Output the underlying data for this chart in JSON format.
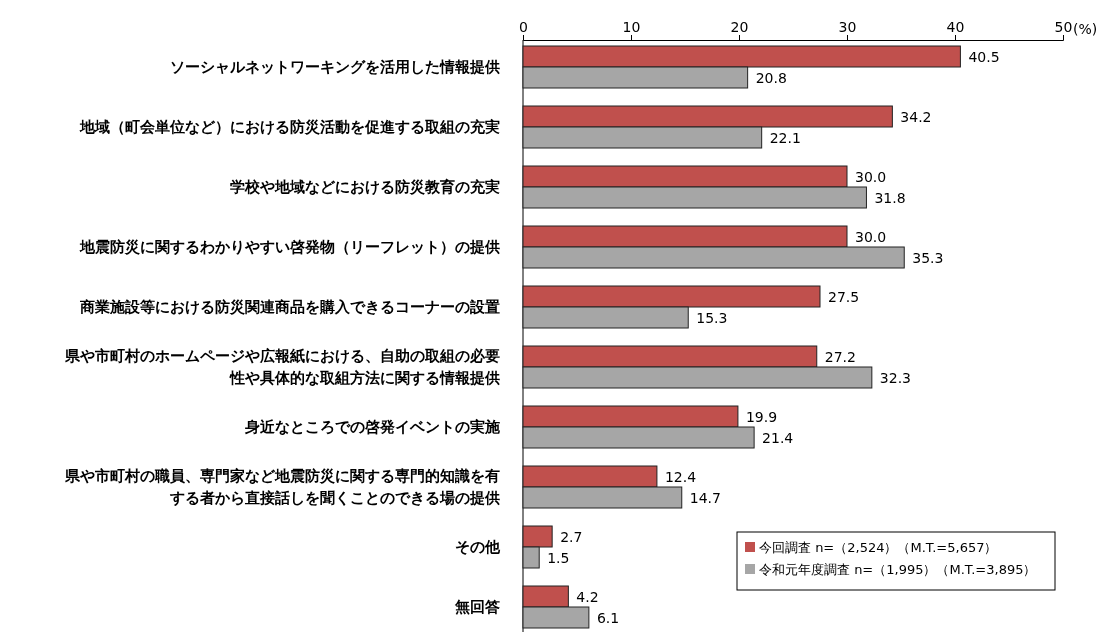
{
  "chart_data": {
    "type": "bar",
    "orientation": "horizontal",
    "xlabel": "(%)",
    "categories": [
      "ソーシャルネットワーキングを活用した情報提供",
      "地域（町会単位など）における防災活動を促進する取組の充実",
      "学校や地域などにおける防災教育の充実",
      "地震防災に関するわかりやすい啓発物（リーフレット）の提供",
      "商業施設等における防災関連商品を購入できるコーナーの設置",
      "県や市町村のホームページや広報紙における、自助の取組の必要性や具体的な取組方法に関する情報提供",
      "身近なところでの啓発イベントの実施",
      "県や市町村の職員、専門家など地震防災に関する専門的知識を有する者から直接話しを聞くことのできる場の提供",
      "その他",
      "無回答"
    ],
    "series": [
      {
        "name": "今回調査 n=（2,524）（M.T.=5,657）",
        "color": "#c0504d",
        "values": [
          40.5,
          34.2,
          30.0,
          30.0,
          27.5,
          27.2,
          19.9,
          12.4,
          2.7,
          4.2
        ],
        "value_labels": [
          "40.5",
          "34.2",
          "30.0",
          "30.0",
          "27.5",
          "27.2",
          "19.9",
          "12.4",
          "2.7",
          "4.2"
        ]
      },
      {
        "name": "令和元年度調査 n=（1,995）（M.T.=3,895）",
        "color": "#a6a6a6",
        "values": [
          20.8,
          22.1,
          31.8,
          35.3,
          15.3,
          32.3,
          21.4,
          14.7,
          1.5,
          6.1
        ],
        "value_labels": [
          "20.8",
          "22.1",
          "31.8",
          "35.3",
          "15.3",
          "32.3",
          "21.4",
          "14.7",
          "1.5",
          "6.1"
        ]
      }
    ],
    "xlim": [
      0,
      50
    ],
    "xticks": [
      0,
      10,
      20,
      30,
      40,
      50
    ],
    "legend": "bottom right",
    "grid": false
  }
}
